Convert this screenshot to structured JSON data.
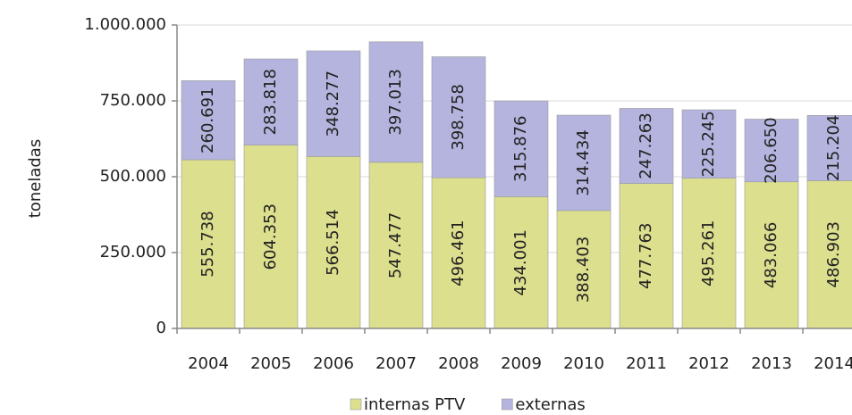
{
  "chart_data": {
    "type": "stacked_bar",
    "y_label": "toneladas",
    "categories": [
      "2004",
      "2005",
      "2006",
      "2007",
      "2008",
      "2009",
      "2010",
      "2011",
      "2012",
      "2013",
      "2014"
    ],
    "series": [
      {
        "name": "internas PTV",
        "color": "#dcdf8e",
        "values": [
          555738,
          604353,
          566514,
          547477,
          496461,
          434001,
          388403,
          477763,
          495261,
          483066,
          486903
        ],
        "value_labels": [
          "555.738",
          "604.353",
          "566.514",
          "547.477",
          "496.461",
          "434.001",
          "388.403",
          "477.763",
          "495.261",
          "483.066",
          "486.903"
        ]
      },
      {
        "name": "externas",
        "color": "#b4b4de",
        "values": [
          260691,
          283818,
          348277,
          397013,
          398758,
          315876,
          314434,
          247263,
          225245,
          206650,
          215204
        ],
        "value_labels": [
          "260.691",
          "283.818",
          "348.277",
          "397.013",
          "398.758",
          "315.876",
          "314.434",
          "247.263",
          "225.245",
          "206.650",
          "215.204"
        ]
      }
    ],
    "ylim": [
      0,
      1000000
    ],
    "yticks": [
      0,
      {
        "value": 250000,
        "label": "250.000"
      },
      {
        "value": 500000,
        "label": "500.000"
      },
      {
        "value": 750000,
        "label": "750.000"
      },
      {
        "value": 1000000,
        "label": "1.000.000"
      }
    ],
    "grid": true,
    "legend": "bottom"
  }
}
